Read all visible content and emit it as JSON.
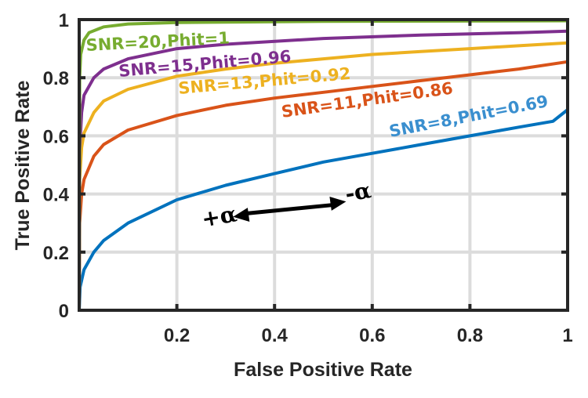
{
  "chart_data": {
    "type": "line",
    "xlabel": "False Positive Rate",
    "ylabel": "True Positive Rate",
    "xlim": [
      0,
      1
    ],
    "ylim": [
      0,
      1
    ],
    "grid": true,
    "xticks": [
      0.2,
      0.4,
      0.6,
      0.8,
      1
    ],
    "xtick_labels": [
      "0.2",
      "0.4",
      "0.6",
      "0.8",
      "1"
    ],
    "yticks": [
      0,
      0.2,
      0.4,
      0.6,
      0.8,
      1
    ],
    "ytick_labels": [
      "0",
      "0.2",
      "0.4",
      "0.6",
      "0.8",
      "1"
    ],
    "series": [
      {
        "name": "SNR=8,Phit=0.69",
        "color": "#0072BD",
        "x": [
          0,
          0.002,
          0.01,
          0.03,
          0.05,
          0.1,
          0.2,
          0.3,
          0.4,
          0.5,
          0.6,
          0.7,
          0.8,
          0.9,
          0.97,
          1
        ],
        "y": [
          0,
          0.08,
          0.14,
          0.2,
          0.24,
          0.3,
          0.38,
          0.43,
          0.47,
          0.51,
          0.54,
          0.57,
          0.6,
          0.63,
          0.65,
          0.69
        ]
      },
      {
        "name": "SNR=11,Phit=0.86",
        "color": "#D95319",
        "x": [
          0,
          0.001,
          0.005,
          0.01,
          0.03,
          0.05,
          0.1,
          0.2,
          0.3,
          0.4,
          0.5,
          0.6,
          0.7,
          0.8,
          0.9,
          1
        ],
        "y": [
          0,
          0.3,
          0.4,
          0.45,
          0.53,
          0.57,
          0.62,
          0.67,
          0.705,
          0.73,
          0.75,
          0.77,
          0.79,
          0.81,
          0.83,
          0.855
        ]
      },
      {
        "name": "SNR=13,Phit=0.92",
        "color": "#EDB120",
        "x": [
          0,
          0.001,
          0.005,
          0.01,
          0.03,
          0.05,
          0.1,
          0.2,
          0.3,
          0.4,
          0.5,
          0.6,
          0.7,
          0.8,
          0.9,
          1
        ],
        "y": [
          0,
          0.45,
          0.56,
          0.61,
          0.68,
          0.72,
          0.76,
          0.805,
          0.83,
          0.85,
          0.865,
          0.88,
          0.89,
          0.9,
          0.91,
          0.92
        ]
      },
      {
        "name": "SNR=15,Phit=0.96",
        "color": "#7E2F8E",
        "x": [
          0,
          0.001,
          0.005,
          0.01,
          0.03,
          0.05,
          0.1,
          0.2,
          0.3,
          0.5,
          0.7,
          0.9,
          1
        ],
        "y": [
          0,
          0.55,
          0.68,
          0.74,
          0.8,
          0.83,
          0.865,
          0.9,
          0.915,
          0.935,
          0.947,
          0.955,
          0.96
        ]
      },
      {
        "name": "SNR=20,Phit=1",
        "color": "#77AC30",
        "x": [
          0,
          0.001,
          0.003,
          0.01,
          0.02,
          0.05,
          0.1,
          0.2,
          0.5,
          1
        ],
        "y": [
          0,
          0.8,
          0.88,
          0.93,
          0.955,
          0.975,
          0.985,
          0.99,
          0.994,
          0.996
        ]
      }
    ],
    "annotations": [
      {
        "text": "+α",
        "x": 0.31,
        "y": 0.3
      },
      {
        "text": "-α",
        "x": 0.56,
        "y": 0.41
      },
      {
        "text": "double-arrow",
        "from": [
          0.36,
          0.3
        ],
        "to": [
          0.54,
          0.39
        ]
      }
    ]
  }
}
